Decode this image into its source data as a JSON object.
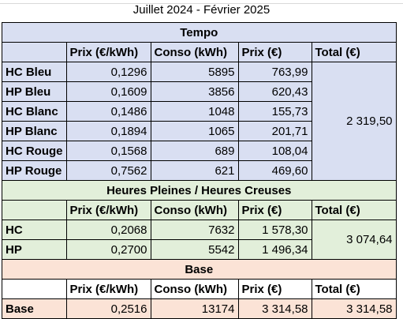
{
  "period_title": "Juillet 2024 - Février 2025",
  "columns": [
    "Prix (€/kWh)",
    "Conso (kWh)",
    "Prix (€)",
    "Total (€)"
  ],
  "sections": {
    "tempo": {
      "title": "Tempo",
      "rows": [
        {
          "label": "HC Bleu",
          "price_kwh": "0,1296",
          "conso": "5895",
          "cost": "763,99"
        },
        {
          "label": "HP Bleu",
          "price_kwh": "0,1609",
          "conso": "3856",
          "cost": "620,43"
        },
        {
          "label": "HC Blanc",
          "price_kwh": "0,1486",
          "conso": "1048",
          "cost": "155,73"
        },
        {
          "label": "HP Blanc",
          "price_kwh": "0,1894",
          "conso": "1065",
          "cost": "201,71"
        },
        {
          "label": "HC Rouge",
          "price_kwh": "0,1568",
          "conso": "689",
          "cost": "108,04"
        },
        {
          "label": "HP Rouge",
          "price_kwh": "0,7562",
          "conso": "621",
          "cost": "469,60"
        }
      ],
      "total": "2 319,50"
    },
    "hphc": {
      "title": "Heures Pleines / Heures Creuses",
      "rows": [
        {
          "label": "HC",
          "price_kwh": "0,2068",
          "conso": "7632",
          "cost": "1 578,30"
        },
        {
          "label": "HP",
          "price_kwh": "0,2700",
          "conso": "5542",
          "cost": "1 496,34"
        }
      ],
      "total": "3 074,64"
    },
    "base": {
      "title": "Base",
      "rows": [
        {
          "label": "Base",
          "price_kwh": "0,2516",
          "conso": "13174",
          "cost": "3 314,58"
        }
      ],
      "total": "3 314,58"
    }
  }
}
